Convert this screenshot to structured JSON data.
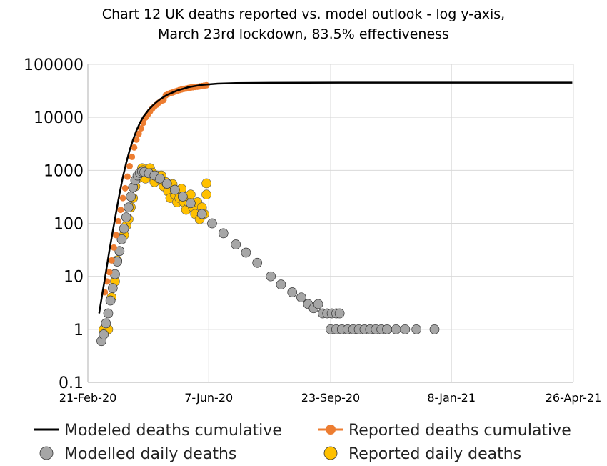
{
  "chart_data": {
    "type": "scatter",
    "title": [
      "Chart 12 UK deaths reported vs. model outlook - log y-axis,",
      "March 23rd lockdown, 83.5% effectiveness"
    ],
    "xlabel": "",
    "ylabel": "",
    "y_scale": "log",
    "ylim": [
      0.1,
      100000
    ],
    "y_ticks": [
      "0.1",
      "1",
      "10",
      "100",
      "1000",
      "10000",
      "100000"
    ],
    "xlim": [
      "2020-02-21",
      "2021-04-26"
    ],
    "x_ticks": [
      "21-Feb-20",
      "7-Jun-20",
      "23-Sep-20",
      "8-Jan-21",
      "26-Apr-21"
    ],
    "grid": true,
    "legend_position": "bottom",
    "colors": {
      "modeled_cumulative": "#000000",
      "reported_cumulative": "#ed7d31",
      "modelled_daily": "#a6a6a6",
      "reported_daily": "#ffc000",
      "gridline": "#d9d9d9"
    },
    "series": [
      {
        "name": "Modeled deaths cumulative",
        "kind": "line",
        "x": [
          "2020-03-02",
          "2020-03-05",
          "2020-03-08",
          "2020-03-11",
          "2020-03-14",
          "2020-03-17",
          "2020-03-20",
          "2020-03-23",
          "2020-03-26",
          "2020-03-29",
          "2020-04-01",
          "2020-04-04",
          "2020-04-07",
          "2020-04-10",
          "2020-04-15",
          "2020-04-20",
          "2020-04-25",
          "2020-05-01",
          "2020-05-10",
          "2020-05-20",
          "2020-06-01",
          "2020-06-15",
          "2020-07-01",
          "2020-08-01",
          "2020-09-01",
          "2020-10-01",
          "2021-01-01",
          "2021-04-25"
        ],
        "y": [
          2,
          5,
          12,
          30,
          70,
          160,
          360,
          750,
          1400,
          2400,
          3800,
          5600,
          7800,
          10200,
          14000,
          18000,
          22000,
          26500,
          32000,
          37000,
          41000,
          43300,
          44300,
          44800,
          45000,
          45100,
          45200,
          45200
        ]
      },
      {
        "name": "Reported deaths cumulative",
        "kind": "points",
        "x": [
          "2020-03-07",
          "2020-03-09",
          "2020-03-11",
          "2020-03-13",
          "2020-03-15",
          "2020-03-17",
          "2020-03-19",
          "2020-03-21",
          "2020-03-23",
          "2020-03-25",
          "2020-03-27",
          "2020-03-29",
          "2020-03-31",
          "2020-04-02",
          "2020-04-04",
          "2020-04-06",
          "2020-04-08",
          "2020-04-10",
          "2020-04-12",
          "2020-04-14",
          "2020-04-16",
          "2020-04-18",
          "2020-04-20",
          "2020-04-22",
          "2020-04-24",
          "2020-04-26",
          "2020-04-28",
          "2020-04-30",
          "2020-05-02",
          "2020-05-04",
          "2020-05-06",
          "2020-05-08",
          "2020-05-10",
          "2020-05-12",
          "2020-05-14",
          "2020-05-16",
          "2020-05-18",
          "2020-05-20",
          "2020-05-22",
          "2020-05-24",
          "2020-05-26",
          "2020-05-28",
          "2020-05-30",
          "2020-06-01",
          "2020-06-03",
          "2020-06-05"
        ],
        "y": [
          5,
          8,
          12,
          20,
          35,
          60,
          110,
          180,
          300,
          460,
          760,
          1200,
          1800,
          2700,
          3800,
          4900,
          6200,
          7900,
          9900,
          11300,
          12900,
          14600,
          16100,
          17400,
          19000,
          20300,
          21200,
          26100,
          27500,
          28700,
          29400,
          30600,
          31600,
          32700,
          33600,
          34500,
          35000,
          35700,
          36400,
          36900,
          37400,
          37800,
          38400,
          39000,
          39700,
          40300
        ]
      },
      {
        "name": "Modelled daily deaths",
        "kind": "points",
        "x": [
          "2020-03-04",
          "2020-03-06",
          "2020-03-08",
          "2020-03-10",
          "2020-03-12",
          "2020-03-14",
          "2020-03-16",
          "2020-03-18",
          "2020-03-20",
          "2020-03-22",
          "2020-03-24",
          "2020-03-26",
          "2020-03-28",
          "2020-03-30",
          "2020-04-01",
          "2020-04-03",
          "2020-04-05",
          "2020-04-07",
          "2020-04-09",
          "2020-04-11",
          "2020-04-15",
          "2020-04-20",
          "2020-04-25",
          "2020-05-01",
          "2020-05-08",
          "2020-05-15",
          "2020-05-22",
          "2020-06-01",
          "2020-06-10",
          "2020-06-20",
          "2020-07-01",
          "2020-07-10",
          "2020-07-20",
          "2020-08-01",
          "2020-08-10",
          "2020-08-20",
          "2020-08-28",
          "2020-09-03",
          "2020-09-08",
          "2020-09-12",
          "2020-09-16",
          "2020-09-20",
          "2020-09-24",
          "2020-09-28",
          "2020-10-01",
          "2020-09-23",
          "2020-09-28",
          "2020-10-03",
          "2020-10-08",
          "2020-10-13",
          "2020-10-18",
          "2020-10-23",
          "2020-10-28",
          "2020-11-02",
          "2020-11-07",
          "2020-11-12",
          "2020-11-20",
          "2020-11-28",
          "2020-12-08",
          "2020-12-24"
        ],
        "y": [
          0.6,
          0.8,
          1.3,
          2,
          3.5,
          6,
          11,
          19,
          30,
          50,
          80,
          130,
          200,
          320,
          480,
          650,
          800,
          900,
          950,
          930,
          880,
          800,
          700,
          560,
          430,
          320,
          240,
          150,
          100,
          65,
          40,
          28,
          18,
          10,
          7,
          5,
          4,
          3,
          2.5,
          3,
          2,
          2,
          2,
          2,
          2,
          1,
          1,
          1,
          1,
          1,
          1,
          1,
          1,
          1,
          1,
          1,
          1,
          1,
          1,
          1
        ]
      },
      {
        "name": "Reported daily deaths",
        "kind": "points",
        "x": [
          "2020-03-06",
          "2020-03-10",
          "2020-03-13",
          "2020-03-16",
          "2020-03-18",
          "2020-03-20",
          "2020-03-22",
          "2020-03-24",
          "2020-03-26",
          "2020-03-28",
          "2020-03-30",
          "2020-04-01",
          "2020-04-03",
          "2020-04-05",
          "2020-04-07",
          "2020-04-08",
          "2020-04-09",
          "2020-04-10",
          "2020-04-12",
          "2020-04-14",
          "2020-04-16",
          "2020-04-18",
          "2020-04-20",
          "2020-04-22",
          "2020-04-24",
          "2020-04-26",
          "2020-04-28",
          "2020-04-30",
          "2020-05-02",
          "2020-05-04",
          "2020-05-06",
          "2020-05-08",
          "2020-05-10",
          "2020-05-12",
          "2020-05-14",
          "2020-05-16",
          "2020-05-18",
          "2020-05-20",
          "2020-05-22",
          "2020-05-24",
          "2020-05-26",
          "2020-05-28",
          "2020-05-30",
          "2020-06-01",
          "2020-06-03",
          "2020-06-05",
          "2020-06-05"
        ],
        "y": [
          1,
          1,
          4,
          8,
          20,
          30,
          50,
          60,
          90,
          120,
          200,
          300,
          500,
          700,
          800,
          950,
          1100,
          1000,
          700,
          900,
          1100,
          900,
          600,
          800,
          700,
          800,
          500,
          600,
          400,
          300,
          550,
          350,
          250,
          300,
          450,
          250,
          180,
          250,
          350,
          200,
          150,
          250,
          120,
          200,
          150,
          350,
          570
        ]
      }
    ],
    "legend": [
      {
        "label": "Modeled deaths cumulative",
        "marker": "line",
        "color": "#000000"
      },
      {
        "label": "Reported deaths cumulative",
        "marker": "line-dot",
        "color": "#ed7d31"
      },
      {
        "label": "Modelled daily deaths",
        "marker": "dot",
        "color": "#a6a6a6"
      },
      {
        "label": "Reported daily deaths",
        "marker": "dot",
        "color": "#ffc000"
      }
    ]
  }
}
